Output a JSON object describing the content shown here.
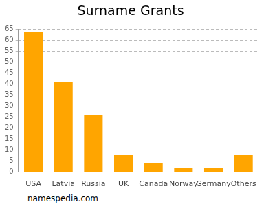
{
  "chart_data": {
    "type": "bar",
    "title": "Surname Grants",
    "source": "namespedia.com",
    "categories": [
      "USA",
      "Latvia",
      "Russia",
      "UK",
      "Canada",
      "Norway",
      "Germany",
      "Others"
    ],
    "values": [
      64,
      41,
      26,
      8,
      4,
      2,
      2,
      8
    ],
    "color": "#ffa500",
    "ylim": [
      0,
      65
    ],
    "yticks": [
      0,
      5,
      10,
      15,
      20,
      25,
      30,
      35,
      40,
      45,
      50,
      55,
      60,
      65
    ],
    "grid": true
  }
}
